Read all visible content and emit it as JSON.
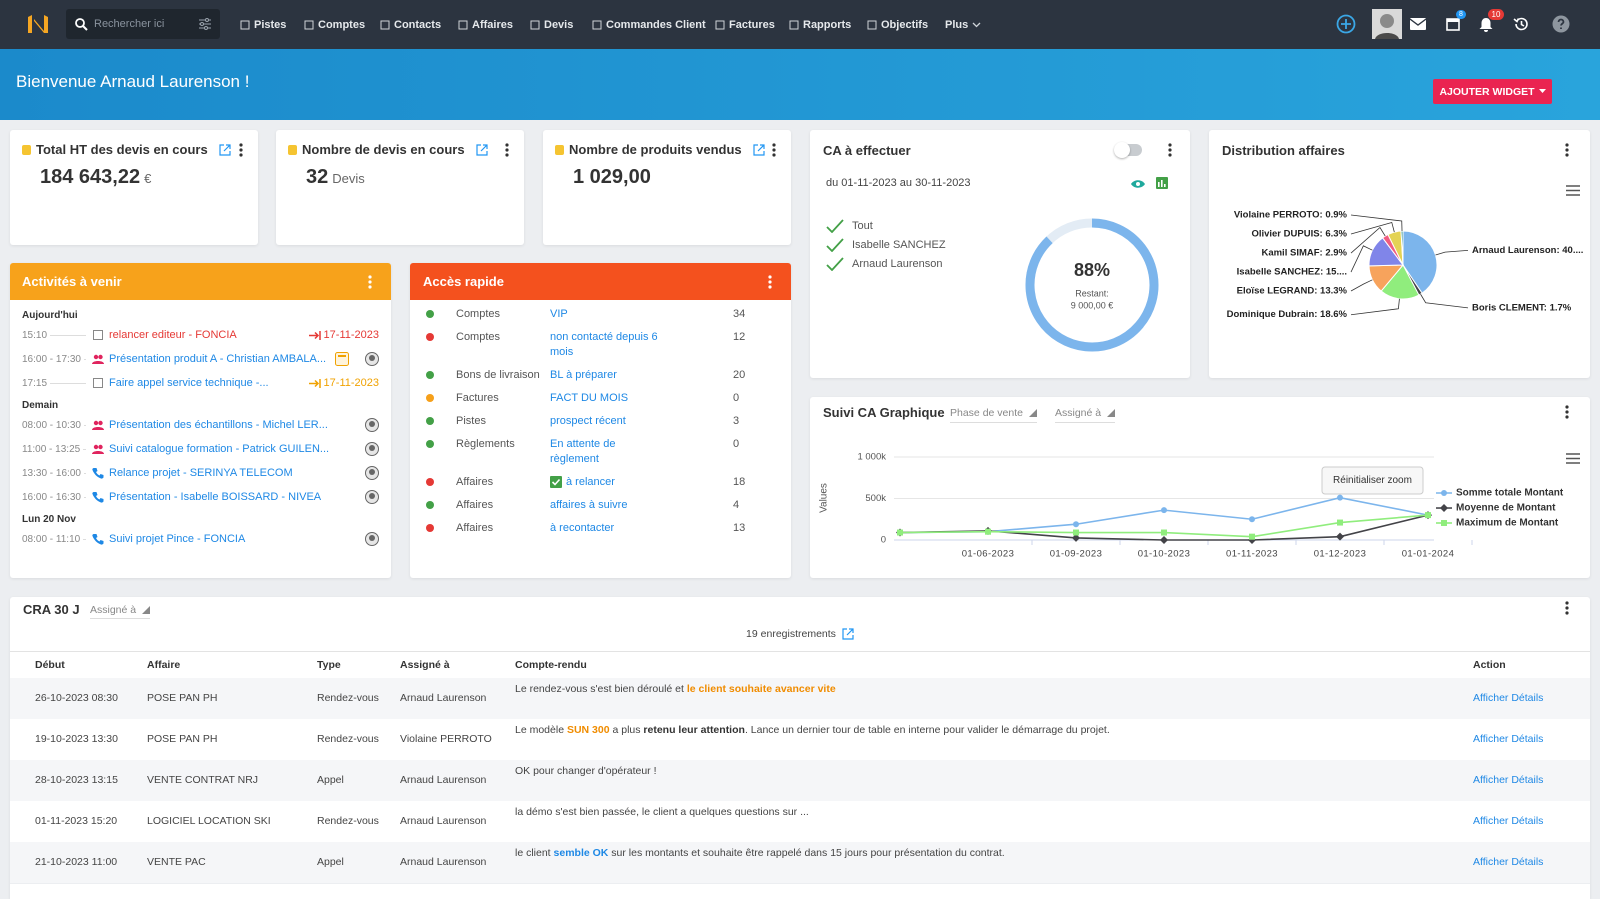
{
  "nav": {
    "search_placeholder": "Rechercher ici",
    "items": [
      "Pistes",
      "Comptes",
      "Contacts",
      "Affaires",
      "Devis",
      "Commandes Client",
      "Factures",
      "Rapports",
      "Objectifs",
      "Plus"
    ],
    "badges": {
      "calendar": 8,
      "notifications": 10
    }
  },
  "banner": {
    "welcome": "Bienvenue Arnaud Laurenson !",
    "button": "AJOUTER WIDGET"
  },
  "kpis": [
    {
      "title": "Total HT des devis en cours",
      "value": "184 643,22",
      "unit": "€"
    },
    {
      "title": "Nombre de devis en cours",
      "value": "32",
      "unit": "Devis"
    },
    {
      "title": "Nombre de produits vendus",
      "value": "1 029,00"
    }
  ],
  "ca_effectuer": {
    "title": "CA à effectuer",
    "period": "du 01-11-2023 au 30-11-2023",
    "filters": [
      "Tout",
      "Isabelle SANCHEZ",
      "Arnaud Laurenson"
    ],
    "progress": {
      "value": 88,
      "label": "88%"
    },
    "remaining_label": "Restant:",
    "remaining": "9 000,00 €"
  },
  "distribution": {
    "title": "Distribution affaires",
    "chart": {
      "type": "pie",
      "labels": [
        "Arnaud Laurenson: 40....",
        "Boris CLEMENT: 1.7%",
        "Dominique Dubrain: 18.6%",
        "Eloïse LEGRAND: 13.3%",
        "Isabelle SANCHEZ: 15....",
        "Kamil SIMAF: 2.9%",
        "Olivier DUPUIS: 6.3%",
        "Violaine PERROTO: 0.9%"
      ],
      "values": [
        40,
        1.7,
        18.6,
        13.3,
        15,
        2.9,
        6.3,
        0.9
      ],
      "colors": [
        "#7cb5ec",
        "#434348",
        "#90ed7d",
        "#f7a35c",
        "#8085e9",
        "#f15c80",
        "#e4d354",
        "#2b908f"
      ]
    }
  },
  "activities": {
    "title": "Activités à venir",
    "groups": [
      {
        "day": "Aujourd'hui",
        "items": [
          {
            "time": "15:10",
            "text": "relancer editeur - FONCIA",
            "icon": "task",
            "color": "#e53935",
            "date": "17-11-2023",
            "date_color": "#e53935"
          },
          {
            "time": "16:00 - 17:30",
            "text": "Présentation produit A - Christian AMBALA...",
            "icon": "meeting",
            "color": "#1e88e5",
            "calendar": true,
            "avatar": true
          },
          {
            "time": "17:15",
            "text": "Faire appel service technique -...",
            "icon": "task",
            "color": "#1e88e5",
            "date": "17-11-2023",
            "date_color": "#f0a202"
          }
        ]
      },
      {
        "day": "Demain",
        "items": [
          {
            "time": "08:00 - 10:30",
            "text": "Présentation des échantillons - Michel LER...",
            "icon": "meeting",
            "color": "#1e88e5",
            "avatar": true
          },
          {
            "time": "11:00 - 13:25",
            "text": "Suivi catalogue formation - Patrick GUILEN...",
            "icon": "meeting",
            "color": "#1e88e5",
            "avatar": true
          },
          {
            "time": "13:30 - 16:00",
            "text": "Relance projet - SERINYA TELECOM",
            "icon": "call",
            "color": "#1e88e5",
            "avatar": true
          },
          {
            "time": "16:00 - 16:30",
            "text": "Présentation - Isabelle BOISSARD - NIVEA",
            "icon": "call",
            "color": "#1e88e5",
            "avatar": true
          }
        ]
      },
      {
        "day": "Lun 20 Nov",
        "items": [
          {
            "time": "08:00 - 11:10",
            "text": "Suivi projet Pince - FONCIA",
            "icon": "call",
            "color": "#1e88e5",
            "avatar": true
          }
        ]
      }
    ]
  },
  "quick_access": {
    "title": "Accès rapide",
    "rows": [
      {
        "status": "#43a047",
        "type": "Comptes",
        "label": "VIP",
        "count": 34
      },
      {
        "status": "#e53935",
        "type": "Comptes",
        "label": "non contacté depuis 6 mois",
        "count": 12
      },
      {
        "status": "#43a047",
        "type": "Bons de livraison",
        "label": "BL à préparer",
        "count": 20
      },
      {
        "status": "#f6a01a",
        "type": "Factures",
        "label": "FACT DU MOIS",
        "count": 0
      },
      {
        "status": "#43a047",
        "type": "Pistes",
        "label": "prospect récent",
        "count": 3
      },
      {
        "status": "#43a047",
        "type": "Règlements",
        "label": "En attente de règlement",
        "count": 0
      },
      {
        "status": "#e53935",
        "type": "Affaires",
        "label": "à relancer",
        "count": 18,
        "checked": true
      },
      {
        "status": "#43a047",
        "type": "Affaires",
        "label": "affaires à suivre",
        "count": 4
      },
      {
        "status": "#e53935",
        "type": "Affaires",
        "label": "à recontacter",
        "count": 13
      }
    ]
  },
  "suivi_ca": {
    "title": "Suivi CA Graphique",
    "filters": [
      "Phase de vente",
      "Assigné à"
    ],
    "reset_zoom": "Réinitialiser zoom",
    "chart": {
      "type": "line",
      "ylabel": "Values",
      "categories": [
        null,
        "01-06-2023",
        "01-09-2023",
        "01-10-2023",
        "01-11-2023",
        "01-12-2023",
        "01-01-2024"
      ],
      "series": [
        {
          "name": "Somme totale Montant",
          "color": "#7cb5ec",
          "marker": "circle",
          "values": [
            90000,
            100000,
            190000,
            360000,
            250000,
            510000,
            300000
          ]
        },
        {
          "name": "Moyenne de Montant",
          "color": "#434348",
          "marker": "diamond",
          "values": [
            90000,
            110000,
            25000,
            0,
            0,
            40000,
            300000
          ]
        },
        {
          "name": "Maximum de Montant",
          "color": "#90ed7d",
          "marker": "square",
          "values": [
            90000,
            100000,
            90000,
            90000,
            40000,
            210000,
            300000
          ]
        }
      ],
      "ylim": [
        0,
        1000000
      ],
      "yticks": [
        0,
        {
          "value": 500000,
          "label": "500k"
        },
        {
          "value": 1000000,
          "label": "1 000k"
        }
      ],
      "grid": true
    }
  },
  "cra": {
    "title": "CRA 30 J",
    "filter": "Assigné à",
    "count": "19 enregistrements",
    "columns": [
      "Début",
      "Affaire",
      "Type",
      "Assigné à",
      "Compte-rendu",
      "Action"
    ],
    "rows": [
      {
        "start": "26-10-2023 08:30",
        "deal": "POSE PAN PH",
        "type": "Rendez-vous",
        "assigned": "Arnaud Laurenson",
        "report": [
          {
            "text": "Le rendez-vous s'est bien déroulé et ",
            "style": "plain"
          },
          {
            "text": "le client souhaite avancer vite",
            "style": "orange"
          }
        ],
        "action": "Afficher Détails"
      },
      {
        "start": "19-10-2023 13:30",
        "deal": "POSE PAN PH",
        "type": "Rendez-vous",
        "assigned": "Violaine PERROTO",
        "report": [
          {
            "text": "Le modèle ",
            "style": "plain"
          },
          {
            "text": "SUN 300",
            "style": "orange"
          },
          {
            "text": " a plus ",
            "style": "plain"
          },
          {
            "text": "retenu leur attention",
            "style": "bold"
          },
          {
            "text": ". Lance un dernier tour de table en interne pour valider le démarrage du projet.",
            "style": "plain"
          }
        ],
        "action": "Afficher Détails"
      },
      {
        "start": "28-10-2023 13:15",
        "deal": "VENTE CONTRAT NRJ",
        "type": "Appel",
        "assigned": "Arnaud Laurenson",
        "report": [
          {
            "text": "OK pour changer d'opérateur !",
            "style": "plain"
          }
        ],
        "action": "Afficher Détails"
      },
      {
        "start": "01-11-2023 15:20",
        "deal": "LOGICIEL LOCATION SKI",
        "type": "Rendez-vous",
        "assigned": "Arnaud Laurenson",
        "report": [
          {
            "text": "la démo s'est bien passée, le client a quelques questions sur ...",
            "style": "plain"
          }
        ],
        "action": "Afficher Détails"
      },
      {
        "start": "21-10-2023 11:00",
        "deal": "VENTE PAC",
        "type": "Appel",
        "assigned": "Arnaud Laurenson",
        "report": [
          {
            "text": "le client ",
            "style": "plain"
          },
          {
            "text": "semble OK",
            "style": "blue"
          },
          {
            "text": " sur les montants et souhaite être rappelé dans 15 jours pour présentation du contrat.",
            "style": "plain"
          }
        ],
        "action": "Afficher Détails"
      }
    ]
  }
}
